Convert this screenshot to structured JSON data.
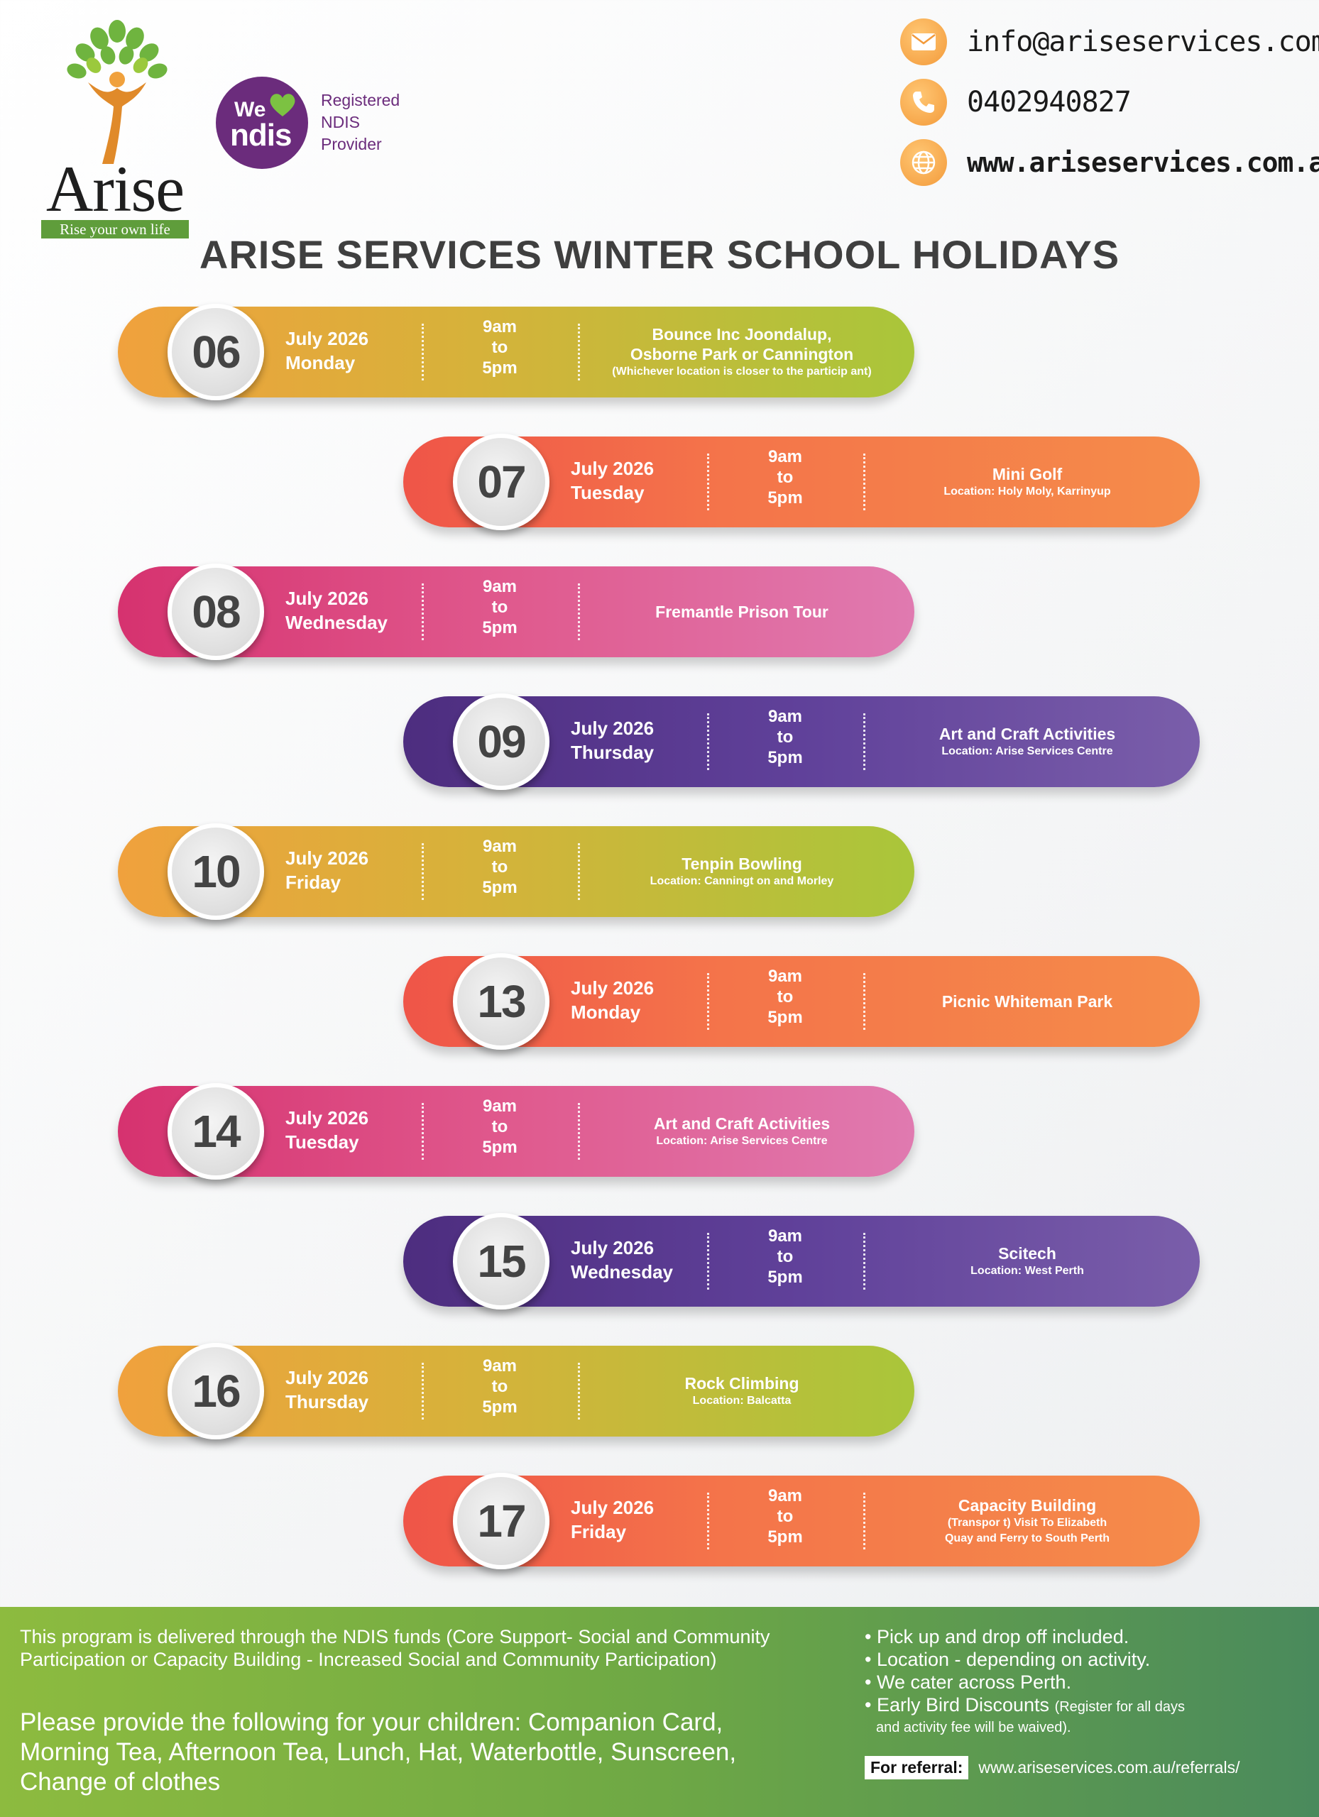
{
  "brand": {
    "name": "Arise",
    "tagline": "Rise your own life"
  },
  "ndis": {
    "badge_we": "We",
    "badge_word": "ndis",
    "line1": "Registered",
    "line2": "NDIS",
    "line3": "Provider"
  },
  "contacts": {
    "email": "info@ariseservices.com.au",
    "phone": "0402940827",
    "website": "www.ariseservices.com.au"
  },
  "title": "ARISE SERVICES WINTER SCHOOL HOLIDAYS",
  "events": [
    {
      "day": "06",
      "month": "July 2026",
      "weekday": "Monday",
      "t1": "9am",
      "t2": "to",
      "t3": "5pm",
      "title1": "Bounce Inc Joondalup,",
      "title2": "Osborne Park or Cannington",
      "sub1": "(Whichever location is closer to the particip ant)",
      "sub2": ""
    },
    {
      "day": "07",
      "month": "July 2026",
      "weekday": "Tuesday",
      "t1": "9am",
      "t2": "to",
      "t3": "5pm",
      "title1": "Mini Golf",
      "title2": "",
      "sub1": "Location: Holy Moly, Karrinyup",
      "sub2": ""
    },
    {
      "day": "08",
      "month": "July 2026",
      "weekday": "Wednesday",
      "t1": "9am",
      "t2": "to",
      "t3": "5pm",
      "title1": "Fremantle Prison Tour",
      "title2": "",
      "sub1": "",
      "sub2": ""
    },
    {
      "day": "09",
      "month": "July 2026",
      "weekday": "Thursday",
      "t1": "9am",
      "t2": "to",
      "t3": "5pm",
      "title1": "Art and Craft Activities",
      "title2": "",
      "sub1": "Location: Arise Services Centre",
      "sub2": ""
    },
    {
      "day": "10",
      "month": "July 2026",
      "weekday": "Friday",
      "t1": "9am",
      "t2": "to",
      "t3": "5pm",
      "title1": "Tenpin Bowling",
      "title2": "",
      "sub1": "Location: Canningt on and Morley",
      "sub2": ""
    },
    {
      "day": "13",
      "month": "July 2026",
      "weekday": "Monday",
      "t1": "9am",
      "t2": "to",
      "t3": "5pm",
      "title1": "Picnic Whiteman Park",
      "title2": "",
      "sub1": "",
      "sub2": ""
    },
    {
      "day": "14",
      "month": "July 2026",
      "weekday": "Tuesday",
      "t1": "9am",
      "t2": "to",
      "t3": "5pm",
      "title1": "Art and Craft Activities",
      "title2": "",
      "sub1": "Location: Arise Services Centre",
      "sub2": ""
    },
    {
      "day": "15",
      "month": "July 2026",
      "weekday": "Wednesday",
      "t1": "9am",
      "t2": "to",
      "t3": "5pm",
      "title1": "Scitech",
      "title2": "",
      "sub1": "Location: West Perth",
      "sub2": ""
    },
    {
      "day": "16",
      "month": "July 2026",
      "weekday": "Thursday",
      "t1": "9am",
      "t2": "to",
      "t3": "5pm",
      "title1": "Rock Climbing",
      "title2": "",
      "sub1": "Location: Balcatta",
      "sub2": ""
    },
    {
      "day": "17",
      "month": "July 2026",
      "weekday": "Friday",
      "t1": "9am",
      "t2": "to",
      "t3": "5pm",
      "title1": "Capacity Building",
      "title2": "",
      "sub1": "(Transpor t) Visit To Elizabeth",
      "sub2": "Quay and Ferry to South Perth"
    }
  ],
  "footer": {
    "note": "This program is delivered through the NDIS funds (Core Support- Social and Community Participation or Capacity Building - Increased Social and Community Participation)",
    "please": "Please provide the following for your children: Companion Card, Morning Tea, Afternoon Tea, Lunch, Hat, Waterbottle, Sunscreen, Change of clothes",
    "bullets": [
      "Pick up and drop off included.",
      "Location - depending on activity.",
      "We cater across Perth.",
      "Early Bird Discounts"
    ],
    "early_bird_note1": "(Register for all days",
    "early_bird_note2": "and activity fee will be waived).",
    "referral_label": "For referral:",
    "referral_url": "www.ariseservices.com.au/referrals/"
  },
  "colors": {
    "yellow_start": "#f0a13d",
    "yellow_end": "#a9c63a",
    "orange_start": "#ef5548",
    "orange_end": "#f58c4a",
    "pink_start": "#d6326f",
    "pink_end": "#e07ab0",
    "purple_start": "#4d2d7f",
    "purple_end": "#7a5eaa",
    "ndis_purple": "#6b2c7c",
    "footer_green": "#6ea845",
    "contact_orange": "#f39a3a"
  },
  "icons": {
    "email": "envelope-icon",
    "phone": "phone-icon",
    "website": "globe-icon",
    "ndis": "heart-icon",
    "logo": "tree-person-icon"
  }
}
